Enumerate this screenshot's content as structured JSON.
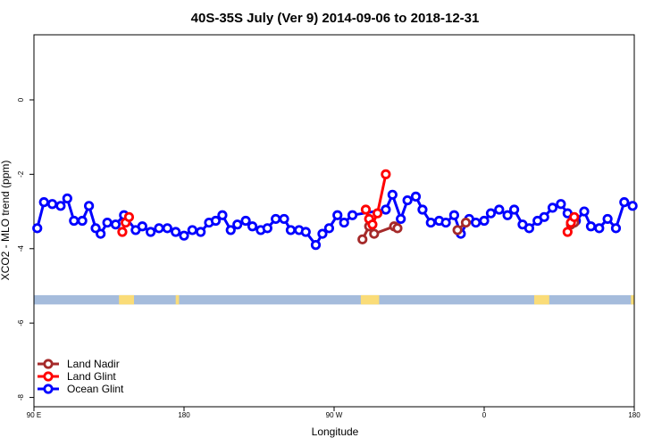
{
  "chart_data": {
    "type": "line",
    "title": "40S-35S July (Ver 9)   2014-09-06 to 2018-12-31",
    "xlabel": "Longitude",
    "ylabel": "XCO2 - MLO trend (ppm)",
    "xlim": [
      90,
      450
    ],
    "ylim": [
      -8.25,
      1.75
    ],
    "x_ticks": [
      {
        "value": 90,
        "label": "90 E"
      },
      {
        "value": 180,
        "label": "180"
      },
      {
        "value": 270,
        "label": "90 W"
      },
      {
        "value": 360,
        "label": "0"
      },
      {
        "value": 450,
        "label": "180"
      }
    ],
    "y_ticks": [
      {
        "value": 0,
        "label": "0"
      },
      {
        "value": -2,
        "label": "-2"
      },
      {
        "value": -4,
        "label": "-4"
      },
      {
        "value": -6,
        "label": "-6"
      },
      {
        "value": -8,
        "label": "-8"
      }
    ],
    "grid": false,
    "legend_position": "bottom-left",
    "land_band": {
      "y_range": [
        -5.5,
        -5.25
      ],
      "ocean_color": "#a5bcdc",
      "land_color": "#fadc78",
      "land_segments": [
        [
          141,
          150
        ],
        [
          175,
          177
        ],
        [
          286,
          297
        ],
        [
          390,
          399
        ],
        [
          448,
          450
        ]
      ]
    },
    "series": [
      {
        "name": "Land Nadir",
        "color": "#a52a2a",
        "x": [
          287,
          291,
          294,
          306,
          308,
          344,
          349,
          412,
          414
        ],
        "y": [
          -3.75,
          -3.4,
          -3.6,
          -3.4,
          -3.45,
          -3.5,
          -3.3,
          -3.35,
          -3.3
        ]
      },
      {
        "name": "Land Glint",
        "color": "#ff0000",
        "x": [
          143,
          145,
          147,
          289,
          291,
          293,
          296,
          301,
          410,
          412,
          414
        ],
        "y": [
          -3.55,
          -3.3,
          -3.15,
          -2.95,
          -3.2,
          -3.35,
          -3.05,
          -2.0,
          -3.55,
          -3.3,
          -3.15
        ]
      },
      {
        "name": "Ocean Glint",
        "color": "#0000ff",
        "x": [
          92,
          96,
          101,
          106,
          110,
          114,
          119,
          123,
          127,
          130,
          134,
          139,
          144,
          151,
          155,
          160,
          165,
          170,
          175,
          180,
          185,
          190,
          195,
          199,
          203,
          208,
          212,
          217,
          221,
          226,
          230,
          235,
          240,
          244,
          249,
          253,
          259,
          263,
          267,
          272,
          276,
          281,
          301,
          305,
          310,
          314,
          319,
          323,
          328,
          333,
          337,
          342,
          346,
          351,
          355,
          360,
          364,
          369,
          374,
          378,
          383,
          387,
          392,
          396,
          401,
          406,
          410,
          415,
          420,
          424,
          429,
          434,
          439,
          444,
          449
        ],
        "y": [
          -3.45,
          -2.75,
          -2.8,
          -2.85,
          -2.65,
          -3.25,
          -3.25,
          -2.85,
          -3.45,
          -3.6,
          -3.3,
          -3.35,
          -3.1,
          -3.5,
          -3.4,
          -3.55,
          -3.45,
          -3.45,
          -3.55,
          -3.65,
          -3.5,
          -3.55,
          -3.3,
          -3.25,
          -3.1,
          -3.5,
          -3.35,
          -3.25,
          -3.4,
          -3.5,
          -3.45,
          -3.2,
          -3.2,
          -3.5,
          -3.5,
          -3.55,
          -3.9,
          -3.6,
          -3.45,
          -3.1,
          -3.3,
          -3.1,
          -2.95,
          -2.55,
          -3.2,
          -2.7,
          -2.6,
          -2.95,
          -3.3,
          -3.25,
          -3.3,
          -3.1,
          -3.6,
          -3.2,
          -3.3,
          -3.25,
          -3.05,
          -2.95,
          -3.1,
          -2.95,
          -3.35,
          -3.45,
          -3.25,
          -3.15,
          -2.9,
          -2.8,
          -3.05,
          -3.25,
          -3.0,
          -3.4,
          -3.45,
          -3.2,
          -3.45,
          -2.75,
          -2.85
        ]
      }
    ]
  }
}
